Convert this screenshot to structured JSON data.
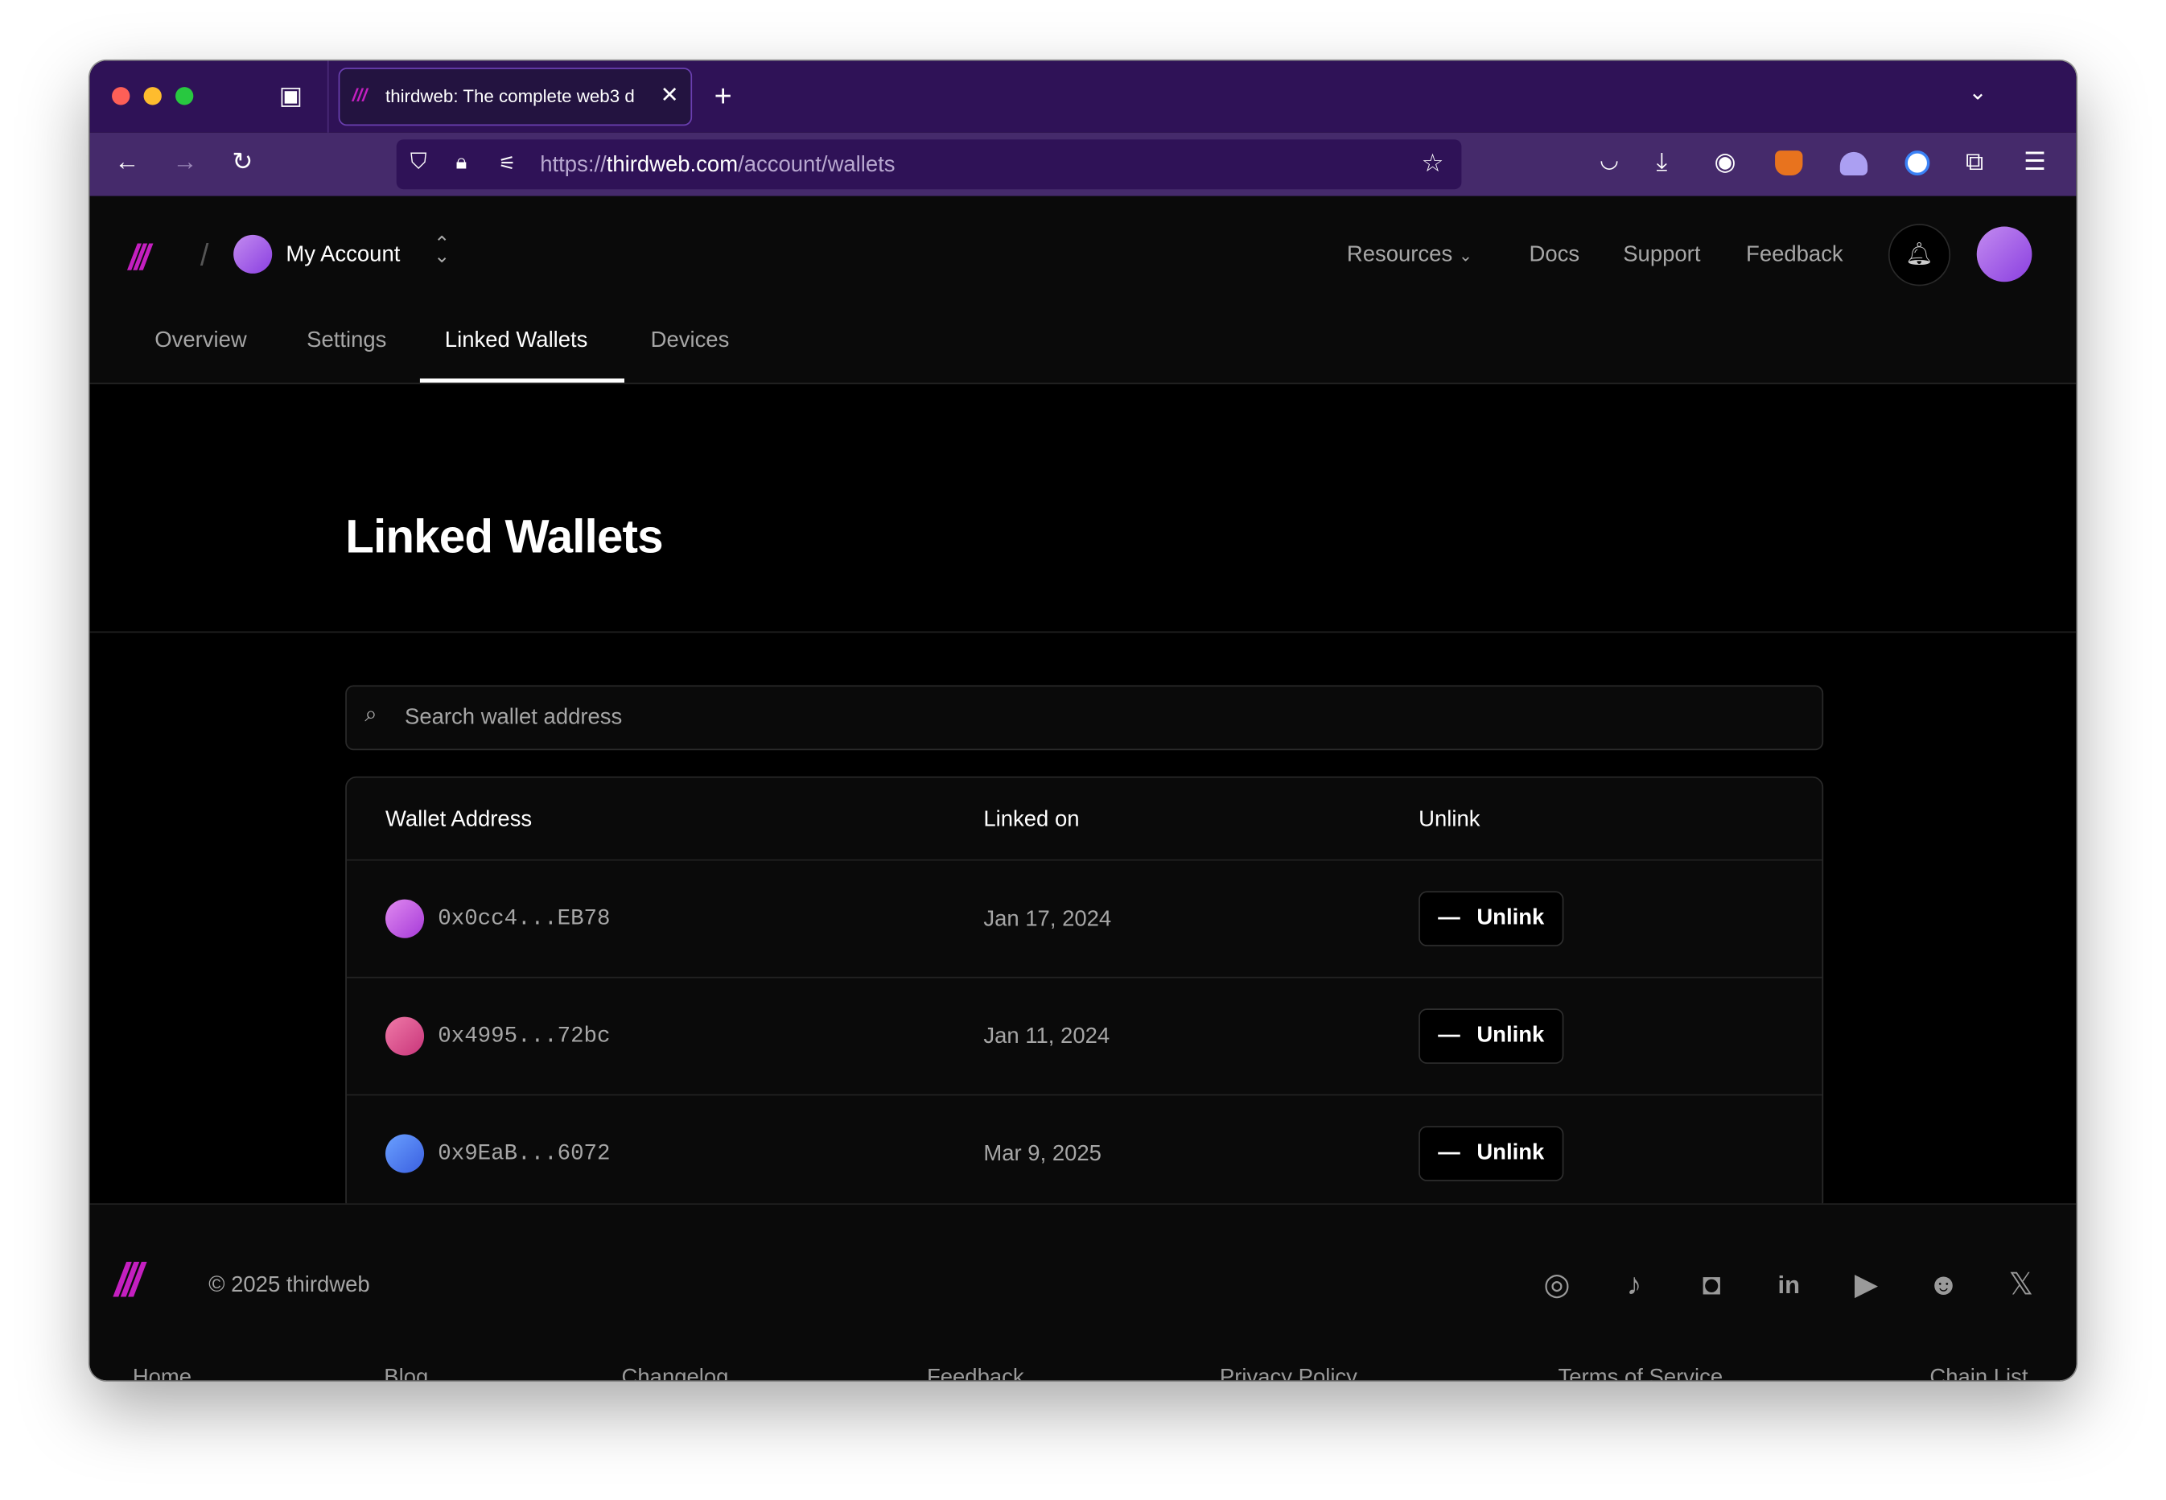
{
  "browser": {
    "tab_title": "thirdweb: The complete web3 d",
    "url_scheme": "https://",
    "url_host": "thirdweb.com",
    "url_path": "/account/wallets",
    "icons": [
      "back-icon",
      "forward-icon",
      "reload-icon",
      "shield-icon",
      "lock-icon",
      "permissions-icon",
      "star-icon",
      "pocket-icon",
      "download-icon",
      "account-icon",
      "metamask-icon",
      "phantom-icon",
      "1password-icon",
      "extensions-icon",
      "menu-icon"
    ]
  },
  "header": {
    "account_label": "My Account",
    "nav": [
      "Resources",
      "Docs",
      "Support",
      "Feedback"
    ]
  },
  "tabs": [
    "Overview",
    "Settings",
    "Linked Wallets",
    "Devices"
  ],
  "active_tab": "Linked Wallets",
  "main": {
    "title": "Linked Wallets",
    "search_placeholder": "Search wallet address",
    "columns": [
      "Wallet Address",
      "Linked on",
      "Unlink"
    ],
    "rows": [
      {
        "address": "0x0cc4...EB78",
        "date": "Jan 17, 2024",
        "action": "Unlink",
        "color": "#c05ce0"
      },
      {
        "address": "0x4995...72bc",
        "date": "Jan 11, 2024",
        "action": "Unlink",
        "color": "#e0568a"
      },
      {
        "address": "0x9EaB...6072",
        "date": "Mar 9, 2025",
        "action": "Unlink",
        "color": "#4a7fee"
      }
    ]
  },
  "footer": {
    "copyright": "© 2025 thirdweb",
    "social": [
      "github-icon",
      "tiktok-icon",
      "instagram-icon",
      "linkedin-icon",
      "youtube-icon",
      "reddit-icon",
      "x-icon"
    ],
    "links": [
      "Home",
      "Blog",
      "Changelog",
      "Feedback",
      "Privacy Policy",
      "Terms of Service",
      "Chain List"
    ]
  },
  "colors": {
    "brand": "#c41fc0",
    "tabbar": "#2f1257",
    "toolbar": "#452a6b"
  }
}
